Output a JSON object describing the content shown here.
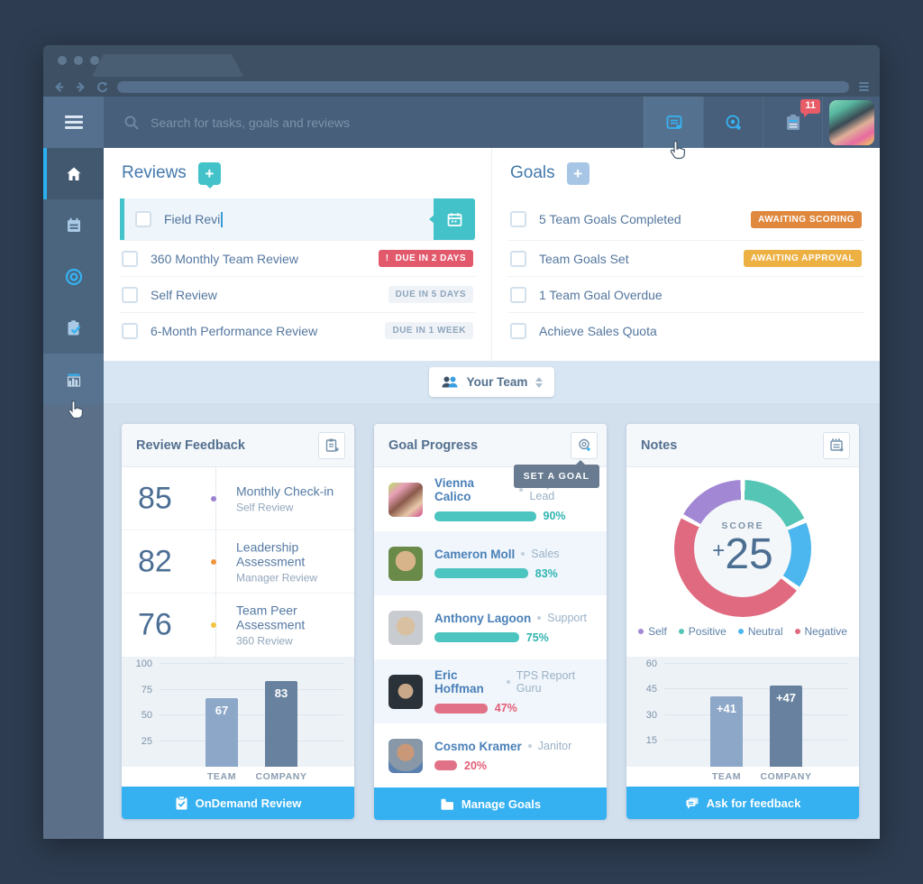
{
  "header": {
    "search_placeholder": "Search for tasks, goals and reviews",
    "notification_count": "11",
    "avatar_gradient": "linear-gradient(150deg,#8ad8b8 0%,#58b8a0 22%,#3a4a54 45%,#e0b098 62%,#e86aa0 80%,#f0d05a 100%)"
  },
  "reviews": {
    "title": "Reviews",
    "add_label": "+",
    "edit_item": {
      "text": "Field Revi"
    },
    "items": [
      {
        "label": "360 Monthly Team Review",
        "badge_icon": "!",
        "badge": "DUE IN 2 DAYS"
      },
      {
        "label": "Self Review",
        "badge": "DUE IN 5 DAYS"
      },
      {
        "label": "6-Month Performance Review",
        "badge": "DUE IN 1 WEEK"
      }
    ]
  },
  "goals": {
    "title": "Goals",
    "add_label": "+",
    "items": [
      {
        "label": "5 Team Goals Completed",
        "badge": "AWAITING SCORING"
      },
      {
        "label": "Team Goals Set",
        "badge": "AWAITING APPROVAL"
      },
      {
        "label": "1 Team Goal Overdue"
      },
      {
        "label": "Achieve Sales Quota"
      }
    ]
  },
  "team_selector": {
    "label": "Your Team"
  },
  "cards": {
    "review_feedback": {
      "title": "Review Feedback",
      "scores": [
        {
          "value": "85",
          "title": "Monthly Check-in",
          "subtitle": "Self Review",
          "color": "#9b80d2"
        },
        {
          "value": "82",
          "title": "Leadership Assessment",
          "subtitle": "Manager Review",
          "color": "#f1953f"
        },
        {
          "value": "76",
          "title": "Team Peer Assessment",
          "subtitle": "360 Review",
          "color": "#f2c33e"
        }
      ],
      "chart_data": {
        "type": "bar",
        "categories": [
          "TEAM",
          "COMPANY"
        ],
        "values": [
          67,
          83
        ],
        "display_values": [
          "67",
          "83"
        ],
        "yticks": [
          25,
          50,
          75,
          100
        ],
        "scale_max": 107,
        "bar_colors": [
          "#8ca7c7",
          "#67819f"
        ]
      },
      "button_label": "OnDemand Review"
    },
    "goal_progress": {
      "title": "Goal Progress",
      "tooltip": "SET A GOAL",
      "people": [
        {
          "name": "Vienna Calico",
          "role": "Project Lead",
          "progress": 90,
          "progress_label": "90%",
          "bar_color": "#4cc4c0",
          "label_color": "#2fb4b0",
          "avatar": "linear-gradient(140deg,#b8e06a 0%,#e8a0b8 25%,#8a5a4a 50%,#e8c8a8 75%,#d04a90 100%)"
        },
        {
          "name": "Cameron Moll",
          "role": "Sales",
          "progress": 83,
          "progress_label": "83%",
          "bar_color": "#4cc4c0",
          "label_color": "#2fb4b0",
          "avatar": "radial-gradient(circle at 50% 42%,#d8b48a 0 38%,#6a8a4a 39%)"
        },
        {
          "name": "Anthony Lagoon",
          "role": "Support",
          "progress": 75,
          "progress_label": "75%",
          "bar_color": "#4cc4c0",
          "label_color": "#2fb4b0",
          "avatar": "radial-gradient(circle at 50% 45%,#d8c0a0 0 36%,#c8ccd0 37%)"
        },
        {
          "name": "Eric Hoffman",
          "role": "TPS Report Guru",
          "progress": 47,
          "progress_label": "47%",
          "bar_color": "#e17187",
          "label_color": "#e25c77",
          "avatar": "radial-gradient(circle at 50% 48%,#c8a888 0 30%,#2a3138 31%)"
        },
        {
          "name": "Cosmo Kramer",
          "role": "Janitor",
          "progress": 20,
          "progress_label": "20%",
          "bar_color": "#e17187",
          "label_color": "#e25c77",
          "avatar": "radial-gradient(circle at 50% 40%,#c89878 0 32%,#8898a8 33% 70%,#5a80b0 71%)"
        }
      ],
      "button_label": "Manage Goals"
    },
    "notes": {
      "title": "Notes",
      "donut": {
        "type": "donut",
        "center_label": "SCORE",
        "center_sign": "+",
        "center_value": "25",
        "segments": [
          {
            "label": "Positive",
            "color": "#55c5b5",
            "start": 2,
            "end": 64,
            "percent": 17
          },
          {
            "label": "Neutral",
            "color": "#4cb6ee",
            "start": 68,
            "end": 124,
            "percent": 16
          },
          {
            "label": "Negative",
            "color": "#e06a80",
            "start": 128,
            "end": 296,
            "percent": 47
          },
          {
            "label": "Self",
            "color": "#a287d4",
            "start": 300,
            "end": 358,
            "percent": 16
          }
        ]
      },
      "legend": [
        {
          "label": "Self",
          "color": "#a287d4"
        },
        {
          "label": "Positive",
          "color": "#55c5b5"
        },
        {
          "label": "Neutral",
          "color": "#4cb6ee"
        },
        {
          "label": "Negative",
          "color": "#e06a80"
        }
      ],
      "chart_data": {
        "type": "bar",
        "categories": [
          "TEAM",
          "COMPANY"
        ],
        "values": [
          41,
          47
        ],
        "display_values": [
          "+41",
          "+47"
        ],
        "yticks": [
          15,
          30,
          45,
          60
        ],
        "scale_max": 64,
        "bar_colors": [
          "#8ca7c7",
          "#67819f"
        ]
      },
      "button_label": "Ask for feedback"
    }
  }
}
